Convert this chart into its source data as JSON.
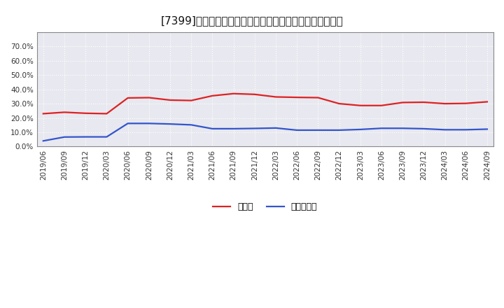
{
  "title": "[7399]　現頲金、有利子負債の総資産に対する比率の推移",
  "x_labels": [
    "2019/06",
    "2019/09",
    "2019/12",
    "2020/03",
    "2020/06",
    "2020/09",
    "2020/12",
    "2021/03",
    "2021/06",
    "2021/09",
    "2021/12",
    "2022/03",
    "2022/06",
    "2022/09",
    "2022/12",
    "2023/03",
    "2023/06",
    "2023/09",
    "2023/12",
    "2024/03",
    "2024/06",
    "2024/09"
  ],
  "cash_values": [
    0.23,
    0.24,
    0.233,
    0.23,
    0.34,
    0.342,
    0.325,
    0.322,
    0.355,
    0.37,
    0.365,
    0.347,
    0.344,
    0.342,
    0.3,
    0.287,
    0.287,
    0.308,
    0.31,
    0.3,
    0.302,
    0.313
  ],
  "debt_values": [
    0.04,
    0.067,
    0.068,
    0.068,
    0.162,
    0.162,
    0.158,
    0.152,
    0.125,
    0.125,
    0.127,
    0.13,
    0.115,
    0.115,
    0.115,
    0.12,
    0.128,
    0.128,
    0.125,
    0.118,
    0.118,
    0.122
  ],
  "cash_color": "#dd2222",
  "debt_color": "#3355cc",
  "background_color": "#ffffff",
  "plot_bg_color": "#e8e8f0",
  "grid_color": "#ffffff",
  "ylim": [
    0.0,
    0.8
  ],
  "yticks": [
    0.0,
    0.1,
    0.2,
    0.3,
    0.4,
    0.5,
    0.6,
    0.7
  ],
  "legend_cash": "現頲金",
  "legend_debt": "有利子負債",
  "title_fontsize": 11,
  "axis_fontsize": 7.5,
  "legend_fontsize": 9
}
